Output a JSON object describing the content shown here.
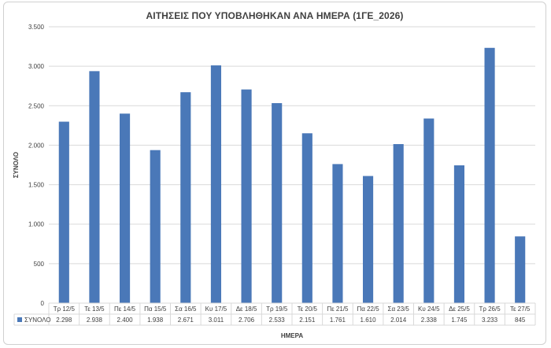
{
  "chart_data": {
    "type": "bar",
    "title": "ΑΙΤΗΣΕΙΣ ΠΟΥ ΥΠΟΒΛΗΘΗΚΑΝ ΑΝΑ ΗΜΕΡΑ (1ΓΕ_2026)",
    "xlabel": "ΗΜΕΡΑ",
    "ylabel": "ΣΥΝΟΛΟ",
    "ylim": [
      0,
      3500
    ],
    "yticks": [
      0,
      500,
      1000,
      1500,
      2000,
      2500,
      3000,
      3500
    ],
    "ytick_labels": [
      "0",
      "500",
      "1.000",
      "1.500",
      "2.000",
      "2.500",
      "3.000",
      "3.500"
    ],
    "grid": true,
    "legend": "data-table-left",
    "categories": [
      "Τρ 12/5",
      "Τε 13/5",
      "Πε 14/5",
      "Πα 15/5",
      "Σα 16/5",
      "Κυ 17/5",
      "Δε 18/5",
      "Τρ 19/5",
      "Τε 20/5",
      "Πε 21/5",
      "Πα 22/5",
      "Σα 23/5",
      "Κυ 24/5",
      "Δε 25/5",
      "Τρ 26/5",
      "Τε 27/5"
    ],
    "series": [
      {
        "name": "ΣΥΝΟΛΟ",
        "color": "#4a78b8",
        "values": [
          2298,
          2938,
          2400,
          1938,
          2671,
          3011,
          2706,
          2533,
          2151,
          1761,
          1610,
          2014,
          2338,
          1745,
          3233,
          845
        ],
        "value_labels": [
          "2.298",
          "2.938",
          "2.400",
          "1.938",
          "2.671",
          "3.011",
          "2.706",
          "2.533",
          "2.151",
          "1.761",
          "1.610",
          "2.014",
          "2.338",
          "1.745",
          "3.233",
          "845"
        ]
      }
    ]
  }
}
